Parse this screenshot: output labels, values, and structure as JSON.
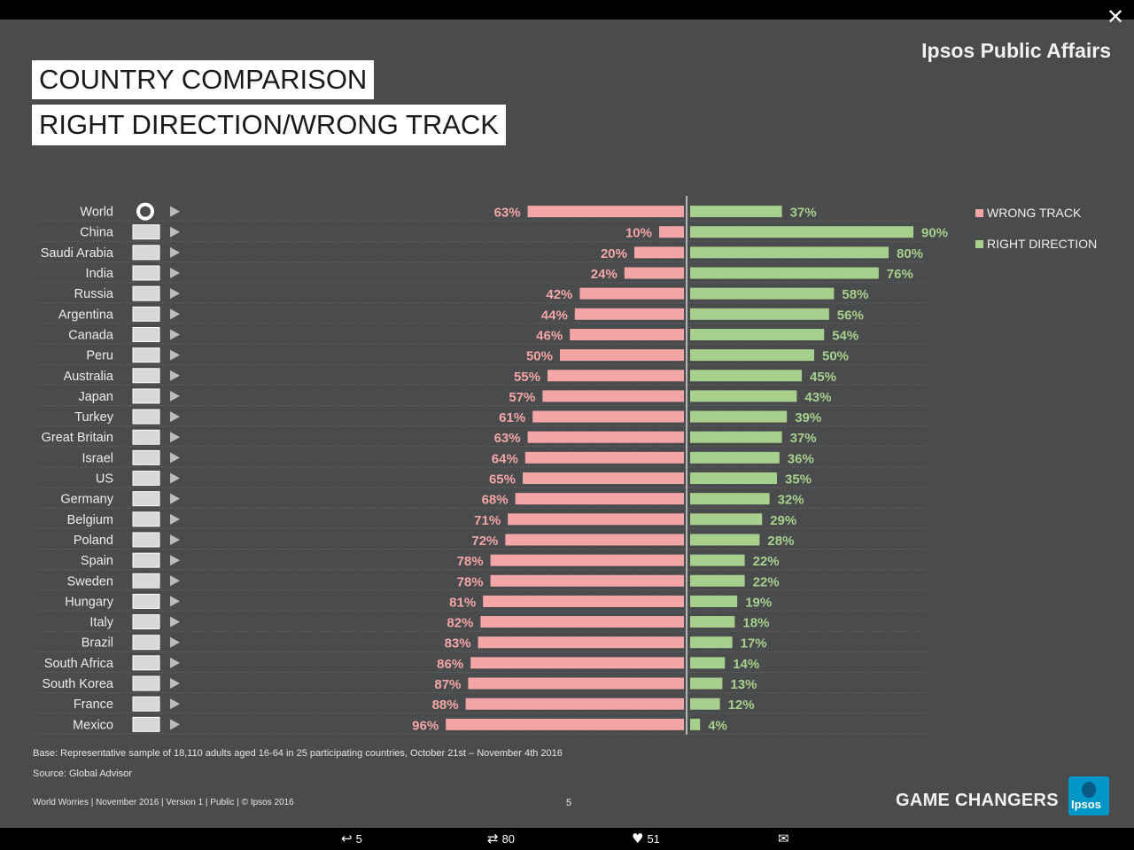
{
  "window": {
    "close_label": "✕"
  },
  "header": {
    "title_line1": "COUNTRY COMPARISON",
    "title_line2": "RIGHT DIRECTION/WRONG TRACK",
    "brand": "Ipsos Public Affairs"
  },
  "chart_data": {
    "type": "bar",
    "orientation": "horizontal-diverging",
    "categories": [
      "World",
      "China",
      "Saudi Arabia",
      "India",
      "Russia",
      "Argentina",
      "Canada",
      "Peru",
      "Australia",
      "Japan",
      "Turkey",
      "Great Britain",
      "Israel",
      "US",
      "Germany",
      "Belgium",
      "Poland",
      "Spain",
      "Sweden",
      "Hungary",
      "Italy",
      "Brazil",
      "South Africa",
      "South Korea",
      "France",
      "Mexico"
    ],
    "series": [
      {
        "name": "WRONG TRACK",
        "color": "#f4a6a6",
        "values": [
          63,
          10,
          20,
          24,
          42,
          44,
          46,
          50,
          55,
          57,
          61,
          63,
          64,
          65,
          68,
          71,
          72,
          78,
          78,
          81,
          82,
          83,
          86,
          87,
          88,
          96
        ]
      },
      {
        "name": "RIGHT DIRECTION",
        "color": "#a8d08d",
        "values": [
          37,
          90,
          80,
          76,
          58,
          56,
          54,
          50,
          45,
          43,
          39,
          37,
          36,
          35,
          32,
          29,
          28,
          22,
          22,
          19,
          18,
          17,
          14,
          13,
          12,
          4
        ]
      }
    ],
    "value_suffix": "%",
    "xlim": [
      0,
      100
    ],
    "legend_position": "right",
    "flag_icons": [
      "globe-icon",
      "flag-china-icon",
      "flag-saudi-arabia-icon",
      "flag-india-icon",
      "flag-russia-icon",
      "flag-argentina-icon",
      "flag-canada-icon",
      "flag-peru-icon",
      "flag-australia-icon",
      "flag-japan-icon",
      "flag-turkey-icon",
      "flag-great-britain-icon",
      "flag-israel-icon",
      "flag-us-icon",
      "flag-germany-icon",
      "flag-belgium-icon",
      "flag-poland-icon",
      "flag-spain-icon",
      "flag-sweden-icon",
      "flag-hungary-icon",
      "flag-italy-icon",
      "flag-brazil-icon",
      "flag-south-africa-icon",
      "flag-south-korea-icon",
      "flag-france-icon",
      "flag-mexico-icon"
    ]
  },
  "footer": {
    "base": "Base: Representative sample of 18,110 adults aged 16-64 in 25 participating countries, October 21st – November 4th 2016",
    "source": "Source: Global Advisor",
    "meta": "World Worries | November 2016 |  Version 1  |  Public | © Ipsos 2016",
    "page_number": "5",
    "tagline": "GAME CHANGERS",
    "logo_text": "Ipsos"
  },
  "actions": {
    "reply_count": "5",
    "retweet_count": "80",
    "like_count": "51"
  }
}
